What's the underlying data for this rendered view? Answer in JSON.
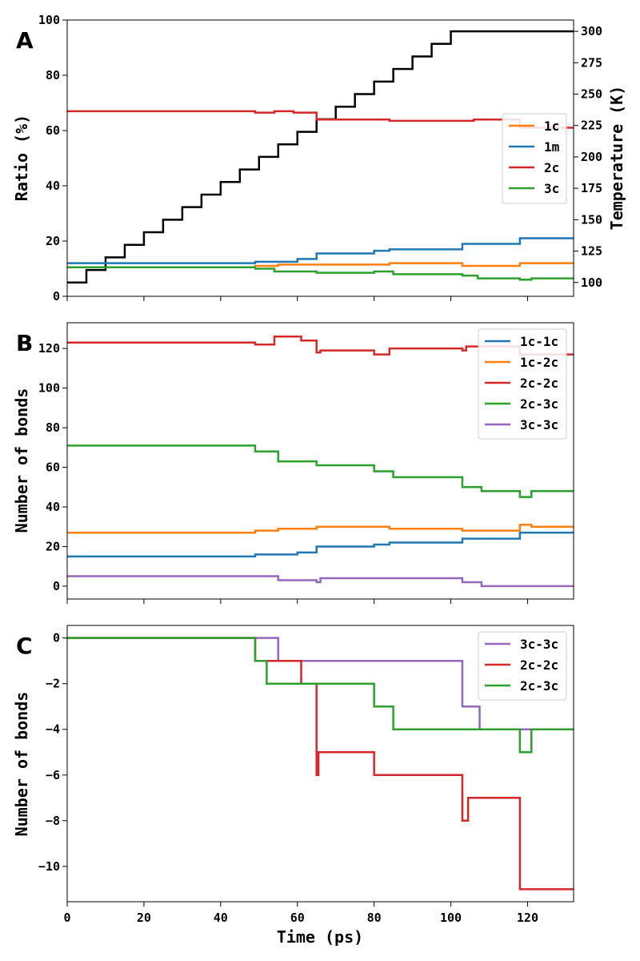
{
  "chart_data": [
    {
      "panel": "A",
      "type": "line",
      "xlim": [
        0,
        132
      ],
      "ylim": [
        0,
        100
      ],
      "ylabel": "Ratio (%)",
      "y2label": "Temperature (K)",
      "y2lim": [
        89,
        309
      ],
      "xticks": [
        0,
        20,
        40,
        60,
        80,
        100,
        120
      ],
      "yticks": [
        0,
        20,
        40,
        60,
        80,
        100
      ],
      "y2ticks": [
        100,
        125,
        150,
        175,
        200,
        225,
        250,
        275,
        300
      ],
      "legend_position": "right",
      "series": [
        {
          "name": "1c",
          "color": "#ff7f0e",
          "x": [
            0,
            49,
            49,
            55,
            55,
            65,
            65,
            84,
            84,
            103,
            103,
            118,
            118,
            132
          ],
          "y": [
            10.5,
            10.5,
            11,
            11,
            11.5,
            11.5,
            11.5,
            11.5,
            12,
            12,
            11,
            11,
            12,
            12
          ]
        },
        {
          "name": "1m",
          "color": "#1f77b4",
          "x": [
            0,
            49,
            49,
            60,
            60,
            65,
            65,
            80,
            80,
            84,
            84,
            103,
            103,
            118,
            118,
            132
          ],
          "y": [
            12,
            12,
            12.5,
            12.5,
            13.5,
            13.5,
            15.5,
            15.5,
            16.5,
            16.5,
            17,
            17,
            19,
            19,
            21,
            21
          ]
        },
        {
          "name": "2c",
          "color": "#d62728",
          "x": [
            0,
            49,
            49,
            54,
            54,
            59,
            59,
            65,
            65,
            84,
            84,
            106,
            106,
            118,
            118,
            132
          ],
          "y": [
            67,
            67,
            66.5,
            66.5,
            67,
            67,
            66.5,
            66.5,
            64,
            64,
            63.5,
            63.5,
            64,
            64,
            61,
            61
          ]
        },
        {
          "name": "3c",
          "color": "#2ca02c",
          "x": [
            0,
            49,
            49,
            54,
            54,
            65,
            65,
            80,
            80,
            85,
            85,
            103,
            103,
            107,
            107,
            118,
            118,
            121,
            121,
            132
          ],
          "y": [
            10.5,
            10.5,
            10,
            10,
            9,
            9,
            8.5,
            8.5,
            9,
            9,
            8,
            8,
            7.5,
            7.5,
            6.5,
            6.5,
            6,
            6,
            6.5,
            6.5
          ]
        },
        {
          "name": "Temperature",
          "axis": "right",
          "color": "#000000",
          "x": [
            0,
            5,
            5,
            10,
            10,
            15,
            15,
            20,
            20,
            25,
            25,
            30,
            30,
            35,
            35,
            40,
            40,
            45,
            45,
            50,
            50,
            55,
            55,
            60,
            60,
            65,
            65,
            70,
            70,
            75,
            75,
            80,
            80,
            85,
            85,
            90,
            90,
            95,
            95,
            100,
            100,
            132
          ],
          "y": [
            100,
            100,
            110,
            110,
            120,
            120,
            130,
            130,
            140,
            140,
            150,
            150,
            160,
            160,
            170,
            170,
            180,
            180,
            190,
            190,
            200,
            200,
            210,
            210,
            220,
            220,
            230,
            230,
            240,
            240,
            250,
            250,
            260,
            260,
            270,
            270,
            280,
            280,
            290,
            290,
            300,
            300
          ]
        }
      ]
    },
    {
      "panel": "B",
      "type": "line",
      "xlim": [
        0,
        132
      ],
      "ylim": [
        -6.5,
        133
      ],
      "ylabel": "Number of bonds",
      "xticks": [
        0,
        20,
        40,
        60,
        80,
        100,
        120
      ],
      "yticks": [
        0,
        20,
        40,
        60,
        80,
        100,
        120
      ],
      "legend_position": "top-right",
      "series": [
        {
          "name": "1c-1c",
          "color": "#1f77b4",
          "x": [
            0,
            49,
            49,
            60,
            60,
            65,
            65,
            80,
            80,
            84,
            84,
            103,
            103,
            118,
            118,
            132
          ],
          "y": [
            15,
            15,
            16,
            16,
            17,
            17,
            20,
            20,
            21,
            21,
            22,
            22,
            24,
            24,
            27,
            27
          ]
        },
        {
          "name": "1c-2c",
          "color": "#ff7f0e",
          "x": [
            0,
            49,
            49,
            55,
            55,
            65,
            65,
            84,
            84,
            103,
            103,
            118,
            118,
            121,
            121,
            132
          ],
          "y": [
            27,
            27,
            28,
            28,
            29,
            29,
            30,
            30,
            29,
            29,
            28,
            28,
            31,
            31,
            30,
            30
          ]
        },
        {
          "name": "2c-2c",
          "color": "#d62728",
          "x": [
            0,
            49,
            49,
            54,
            54,
            61,
            61,
            65,
            65,
            66,
            66,
            80,
            80,
            84,
            84,
            103,
            103,
            104,
            104,
            118,
            118,
            132
          ],
          "y": [
            123,
            123,
            122,
            122,
            126,
            126,
            124,
            124,
            118,
            118,
            119,
            119,
            117,
            117,
            120,
            120,
            119,
            119,
            121,
            121,
            117,
            117
          ]
        },
        {
          "name": "2c-3c",
          "color": "#2ca02c",
          "x": [
            0,
            49,
            49,
            55,
            55,
            65,
            65,
            80,
            80,
            85,
            85,
            103,
            103,
            108,
            108,
            118,
            118,
            121,
            121,
            132
          ],
          "y": [
            71,
            71,
            68,
            68,
            63,
            63,
            61,
            61,
            58,
            58,
            55,
            55,
            50,
            50,
            48,
            48,
            45,
            45,
            48,
            48
          ]
        },
        {
          "name": "3c-3c",
          "color": "#9467bd",
          "x": [
            0,
            55,
            55,
            65,
            65,
            66,
            66,
            103,
            103,
            108,
            108,
            132
          ],
          "y": [
            5,
            5,
            3,
            3,
            2,
            2,
            4,
            4,
            2,
            2,
            0,
            0
          ]
        }
      ]
    },
    {
      "panel": "C",
      "type": "line",
      "xlim": [
        0,
        132
      ],
      "ylim": [
        -11.55,
        0.55
      ],
      "xlabel": "Time (ps)",
      "ylabel": "Number of bonds",
      "xticks": [
        0,
        20,
        40,
        60,
        80,
        100,
        120
      ],
      "yticks": [
        0,
        -2,
        -4,
        -6,
        -8,
        -10
      ],
      "ytick_labels": [
        "0",
        "−2",
        "−4",
        "−6",
        "−8",
        "−10"
      ],
      "legend_position": "top-right",
      "series": [
        {
          "name": "3c-3c",
          "color": "#9467bd",
          "x": [
            0,
            55,
            55,
            103,
            103,
            107.5,
            107.5,
            132
          ],
          "y": [
            0,
            0,
            -1,
            -1,
            -3,
            -3,
            -4,
            -4
          ]
        },
        {
          "name": "2c-2c",
          "color": "#d62728",
          "x": [
            0,
            49,
            49,
            61,
            61,
            65,
            65,
            65.5,
            65.5,
            66,
            66,
            80,
            80,
            85,
            85,
            103,
            103,
            104.5,
            104.5,
            118,
            118,
            132
          ],
          "y": [
            0,
            0,
            -1,
            -1,
            -2,
            -2,
            -6,
            -6,
            -5,
            -5,
            -5,
            -5,
            -6,
            -6,
            -6,
            -6,
            -8,
            -8,
            -7,
            -7,
            -11,
            -11
          ]
        },
        {
          "name": "2c-3c",
          "color": "#2ca02c",
          "x": [
            0,
            49,
            49,
            52,
            52,
            55,
            55,
            65,
            65,
            80,
            80,
            85,
            85,
            118,
            118,
            121,
            121,
            132
          ],
          "y": [
            0,
            0,
            -1,
            -1,
            -2,
            -2,
            -2,
            -2,
            -2,
            -2,
            -3,
            -3,
            -4,
            -4,
            -5,
            -5,
            -4,
            -4
          ]
        }
      ]
    }
  ],
  "series_extra": {
    "A": {
      "1c": [
        [
          65.5,
          12.5
        ]
      ],
      "3c": [
        [
          31,
          11
        ],
        [
          33,
          11
        ],
        [
          57,
          9
        ],
        [
          60,
          9.3
        ],
        [
          66,
          9.2
        ],
        [
          72,
          9.2
        ],
        [
          76,
          9.2
        ],
        [
          79,
          9.3
        ]
      ],
      "2c": [
        [
          102.5,
          64.2
        ],
        [
          103.5,
          63
        ]
      ]
    }
  }
}
